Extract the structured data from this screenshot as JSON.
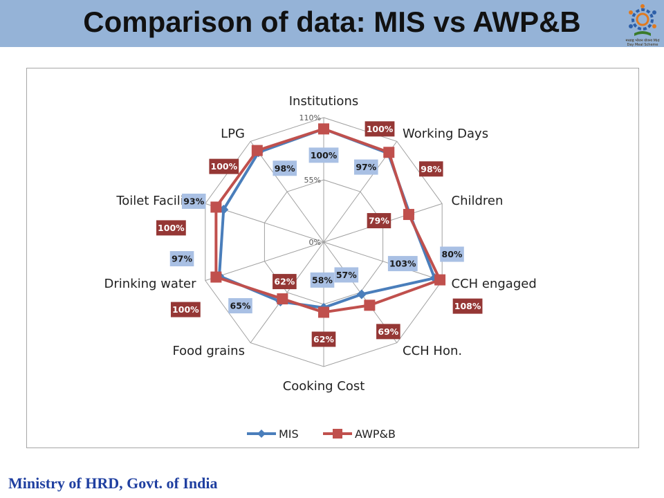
{
  "slide": {
    "title": "Comparison of data: MIS vs AWP&B",
    "footer": "Ministry of HRD, Govt. of India",
    "logo_text": "मध्याह्न भोजन योजना Mid Day Meal Scheme"
  },
  "colors": {
    "title_band": "#95b3d7",
    "mis_line": "#4a7ebb",
    "mis_label_bg": "#a9c0e4",
    "awpb_line": "#c0504d",
    "awpb_label_bg": "#953735",
    "footer_text": "#1f3fa0"
  },
  "chart_data": {
    "type": "radar",
    "categories": [
      "Institutions",
      "Working Days",
      "Children",
      "CCH engaged",
      "CCH Hon.",
      "Cooking Cost",
      "Food grains",
      "Drinking water",
      "Toilet Facility",
      "LPG"
    ],
    "series": [
      {
        "name": "MIS",
        "values": [
          100,
          97,
          80,
          103,
          57,
          58,
          65,
          97,
          93,
          98
        ],
        "labels": [
          "100%",
          "97%",
          "80%",
          "103%",
          "57%",
          "58%",
          "65%",
          "97%",
          "93%",
          "98%"
        ]
      },
      {
        "name": "AWP&B",
        "values": [
          100,
          98,
          79,
          108,
          69,
          62,
          62,
          100,
          100,
          100
        ],
        "labels": [
          "100%",
          "98%",
          "79%",
          "108%",
          "69%",
          "62%",
          "62%",
          "100%",
          "100%",
          "100%"
        ]
      }
    ],
    "rlim": [
      0,
      110
    ],
    "tick_labels": [
      "0%",
      "55%",
      "110%"
    ],
    "grid": true,
    "legend_position": "bottom"
  }
}
